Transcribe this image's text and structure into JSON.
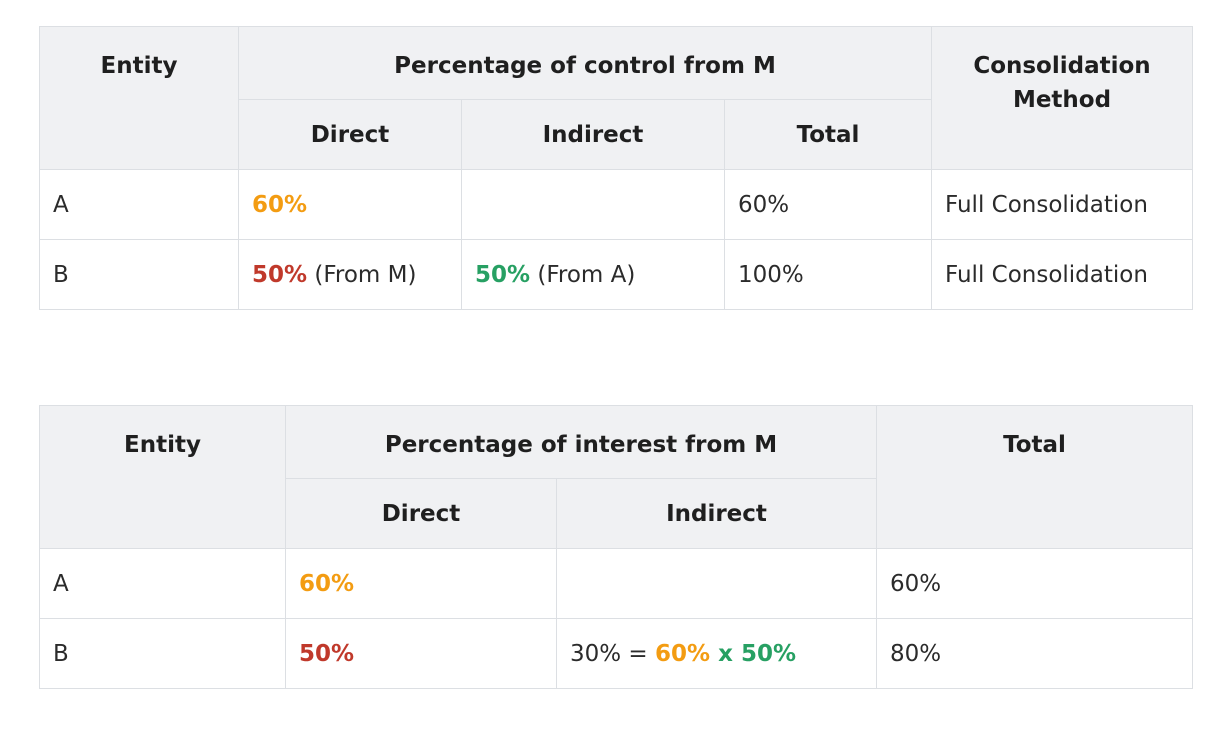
{
  "control_table": {
    "headers": {
      "entity": "Entity",
      "group": "Percentage of control from M",
      "direct": "Direct",
      "indirect": "Indirect",
      "total": "Total",
      "method": "Consolidation Method"
    },
    "rows": [
      {
        "entity": "A",
        "direct_pct": "60%",
        "direct_note": "",
        "indirect_pct": "",
        "indirect_note": "",
        "total": "60%",
        "method": "Full Consolidation"
      },
      {
        "entity": "B",
        "direct_pct": "50%",
        "direct_note": " (From M)",
        "indirect_pct": "50%",
        "indirect_note": " (From A)",
        "total": "100%",
        "method": "Full Consolidation"
      }
    ]
  },
  "interest_table": {
    "headers": {
      "entity": "Entity",
      "group": "Percentage of interest from M",
      "direct": "Direct",
      "indirect": "Indirect",
      "total": "Total"
    },
    "rows": [
      {
        "entity": "A",
        "direct_pct": "60%",
        "indirect_result": "",
        "indirect_eq": "",
        "indirect_factor1": "",
        "indirect_times": "",
        "indirect_factor2": "",
        "total": "60%"
      },
      {
        "entity": "B",
        "direct_pct": "50%",
        "indirect_result": "30%",
        "indirect_eq": " = ",
        "indirect_factor1": "60%",
        "indirect_times": " x ",
        "indirect_factor2": "50%",
        "total": "80%"
      }
    ]
  },
  "colors": {
    "orange": "#f39c12",
    "red": "#c0392b",
    "green": "#27a063",
    "header_bg": "#f0f1f3",
    "border": "#dcdfe3"
  }
}
